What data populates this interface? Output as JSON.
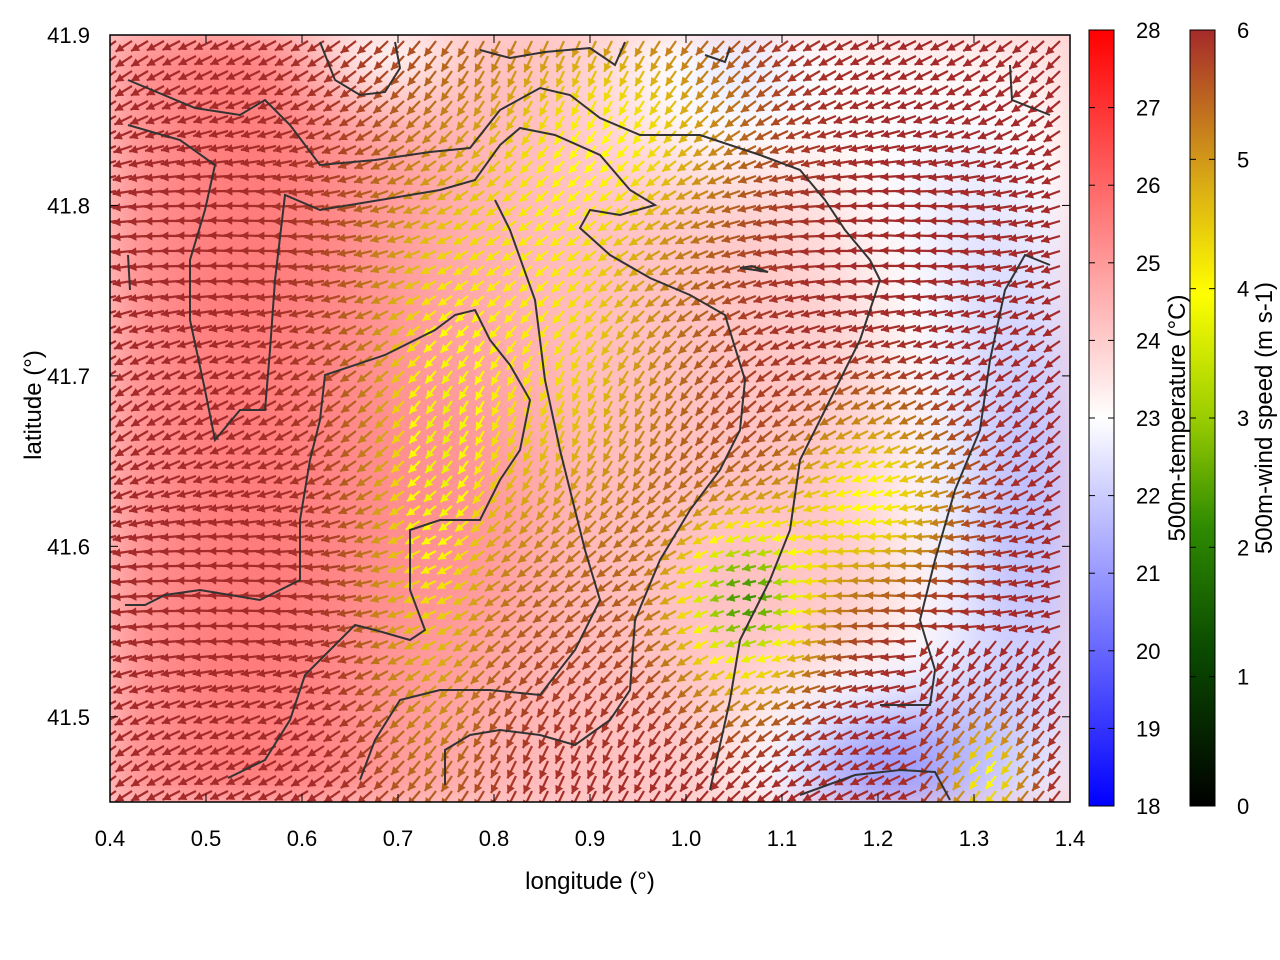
{
  "chart_data": {
    "type": "heatmap",
    "title": "",
    "xlabel": "longitude (°)",
    "ylabel": "latitude (°)",
    "xlim": [
      0.4,
      1.4
    ],
    "ylim": [
      41.45,
      41.9
    ],
    "x_ticks": [
      "0.4",
      "0.5",
      "0.6",
      "0.7",
      "0.8",
      "0.9",
      "1.0",
      "1.1",
      "1.2",
      "1.3",
      "1.4"
    ],
    "y_ticks": [
      "41.5",
      "41.6",
      "41.7",
      "41.8",
      "41.9"
    ],
    "grid": false,
    "temperature_colorbar": {
      "label": "500m-temperature (°C)",
      "range": [
        18,
        28
      ],
      "ticks": [
        "18",
        "19",
        "20",
        "21",
        "22",
        "23",
        "24",
        "25",
        "26",
        "27",
        "28"
      ],
      "colors": [
        "#0000ff",
        "#ffffff",
        "#ff0000"
      ]
    },
    "wind_colorbar": {
      "label": "500m-wind speed (m s-1)",
      "range": [
        0,
        6
      ],
      "ticks": [
        "0",
        "1",
        "2",
        "3",
        "4",
        "5",
        "6"
      ],
      "colors": [
        "#000000",
        "#006400",
        "#7cb800",
        "#ffff00",
        "#d4a017",
        "#b5651d",
        "#a52a2a"
      ]
    },
    "contours": "terrain elevation (black lines)",
    "vectors": "wind arrows colored by speed"
  }
}
